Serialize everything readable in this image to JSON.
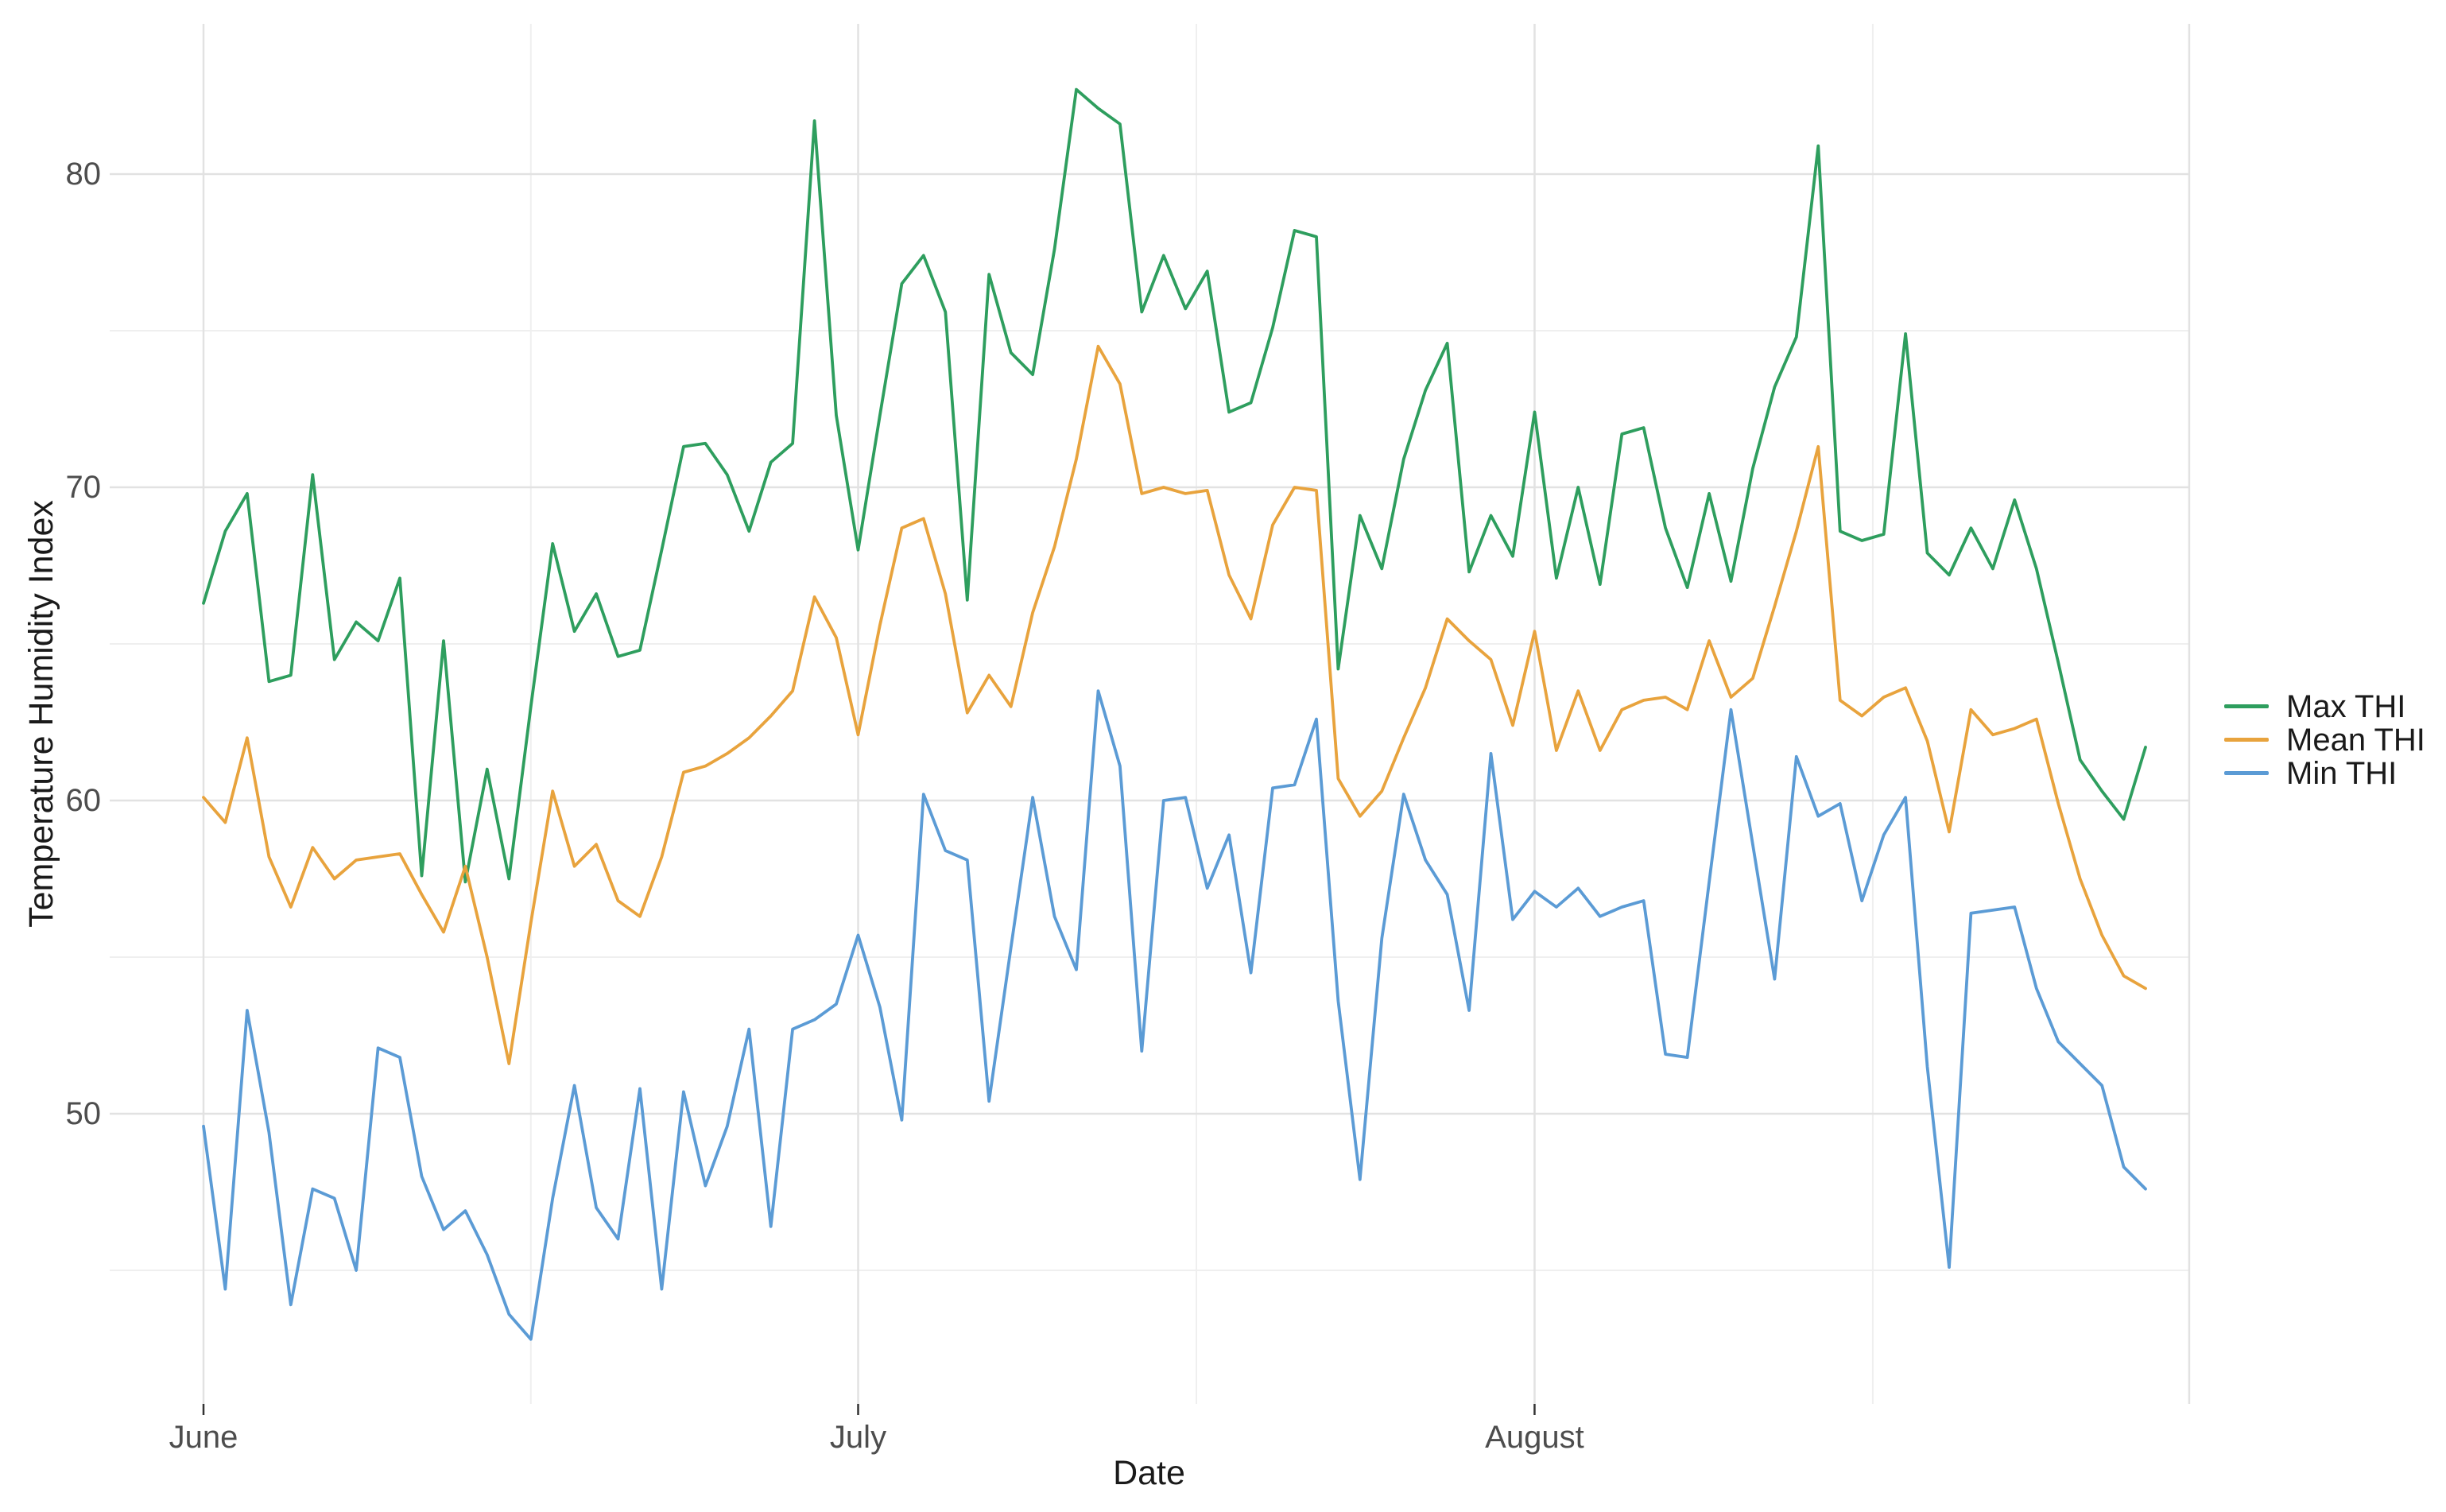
{
  "axes": {
    "x_title": "Date",
    "y_title": "Temperature Humidity Index"
  },
  "chart_data": {
    "type": "line",
    "title": "",
    "xlabel": "Date",
    "ylabel": "Temperature Humidity Index",
    "grid": true,
    "legend_position": "right",
    "ylim": [
      40.7,
      84.8
    ],
    "y_ticks": [
      80,
      70,
      60,
      50
    ],
    "y_minor_ticks": [
      75,
      65,
      55,
      45
    ],
    "x_ticks": [
      {
        "day": 0,
        "label": "June"
      },
      {
        "day": 30,
        "label": "July"
      },
      {
        "day": 61,
        "label": "August"
      },
      {
        "day": 91,
        "label": ""
      }
    ],
    "x_minor_days": [
      15,
      45.5,
      76.5
    ],
    "dates": [
      "Jun 1",
      "Jun 2",
      "Jun 3",
      "Jun 4",
      "Jun 5",
      "Jun 6",
      "Jun 7",
      "Jun 8",
      "Jun 9",
      "Jun 10",
      "Jun 11",
      "Jun 12",
      "Jun 13",
      "Jun 14",
      "Jun 15",
      "Jun 16",
      "Jun 17",
      "Jun 18",
      "Jun 19",
      "Jun 20",
      "Jun 21",
      "Jun 22",
      "Jun 23",
      "Jun 24",
      "Jun 25",
      "Jun 26",
      "Jun 27",
      "Jun 28",
      "Jun 29",
      "Jun 30",
      "Jul 1",
      "Jul 2",
      "Jul 3",
      "Jul 4",
      "Jul 5",
      "Jul 6",
      "Jul 7",
      "Jul 8",
      "Jul 9",
      "Jul 10",
      "Jul 11",
      "Jul 12",
      "Jul 13",
      "Jul 14",
      "Jul 15",
      "Jul 16",
      "Jul 17",
      "Jul 18",
      "Jul 19",
      "Jul 20",
      "Jul 21",
      "Jul 22",
      "Jul 23",
      "Jul 24",
      "Jul 25",
      "Jul 26",
      "Jul 27",
      "Jul 28",
      "Jul 29",
      "Jul 30",
      "Jul 31",
      "Aug 1",
      "Aug 2",
      "Aug 3",
      "Aug 4",
      "Aug 5",
      "Aug 6",
      "Aug 7",
      "Aug 8",
      "Aug 9",
      "Aug 10",
      "Aug 11",
      "Aug 12",
      "Aug 13",
      "Aug 14",
      "Aug 15",
      "Aug 16",
      "Aug 17",
      "Aug 18",
      "Aug 19",
      "Aug 20",
      "Aug 21",
      "Aug 22",
      "Aug 23",
      "Aug 24",
      "Aug 25",
      "Aug 26",
      "Aug 27",
      "Aug 28",
      "Aug 29"
    ],
    "series": [
      {
        "name": "Max THI",
        "color": "#2e9e5e",
        "values": [
          66.3,
          68.6,
          69.8,
          63.8,
          64.0,
          70.4,
          64.5,
          65.7,
          65.1,
          67.1,
          57.6,
          65.1,
          57.4,
          61.0,
          57.5,
          63.0,
          68.2,
          65.4,
          66.6,
          64.6,
          64.8,
          68.0,
          71.3,
          71.4,
          70.4,
          68.6,
          70.8,
          71.4,
          81.7,
          72.3,
          68.0,
          72.3,
          76.5,
          77.4,
          75.6,
          66.4,
          76.8,
          74.3,
          73.6,
          77.6,
          82.7,
          82.1,
          81.6,
          75.6,
          77.4,
          75.7,
          76.9,
          72.4,
          72.7,
          75.1,
          78.2,
          78.0,
          64.2,
          69.1,
          67.4,
          70.9,
          73.1,
          74.6,
          67.3,
          69.1,
          67.8,
          72.4,
          67.1,
          70.0,
          66.9,
          71.7,
          71.9,
          68.7,
          66.8,
          69.8,
          67.0,
          70.6,
          73.2,
          74.8,
          80.9,
          68.6,
          68.3,
          68.5,
          74.9,
          67.9,
          67.2,
          68.7,
          67.4,
          69.6,
          67.4,
          64.4,
          61.3,
          60.3,
          59.4,
          61.7
        ]
      },
      {
        "name": "Mean THI",
        "color": "#e8a33d",
        "values": [
          60.1,
          59.3,
          62.0,
          58.2,
          56.6,
          58.5,
          57.5,
          58.1,
          58.2,
          58.3,
          57.0,
          55.8,
          57.9,
          55.0,
          51.6,
          56.1,
          60.3,
          57.9,
          58.6,
          56.8,
          56.3,
          58.2,
          60.9,
          61.1,
          61.5,
          62.0,
          62.7,
          63.5,
          66.5,
          65.2,
          62.1,
          65.6,
          68.7,
          69.0,
          66.6,
          62.8,
          64.0,
          63.0,
          66.0,
          68.1,
          70.9,
          74.5,
          73.3,
          69.8,
          70.0,
          69.8,
          69.9,
          67.2,
          65.8,
          68.8,
          70.0,
          69.9,
          60.7,
          59.5,
          60.3,
          62.0,
          63.6,
          65.8,
          65.1,
          64.5,
          62.4,
          65.4,
          61.6,
          63.5,
          61.6,
          62.9,
          63.2,
          63.3,
          62.9,
          65.1,
          63.3,
          63.9,
          66.2,
          68.6,
          71.3,
          63.2,
          62.7,
          63.3,
          63.6,
          61.9,
          59.0,
          62.9,
          62.1,
          62.3,
          62.6,
          59.9,
          57.5,
          55.7,
          54.4,
          54.0
        ]
      },
      {
        "name": "Min THI",
        "color": "#5b9bd5",
        "values": [
          49.6,
          44.4,
          53.3,
          49.4,
          43.9,
          47.6,
          47.3,
          45.0,
          52.1,
          51.8,
          48.0,
          46.3,
          46.9,
          45.5,
          43.6,
          42.8,
          47.3,
          50.9,
          47.0,
          46.0,
          50.8,
          44.4,
          50.7,
          47.7,
          49.6,
          52.7,
          46.4,
          52.7,
          53.0,
          53.5,
          55.7,
          53.4,
          49.8,
          60.2,
          58.4,
          58.1,
          50.4,
          55.3,
          60.1,
          56.3,
          54.6,
          63.5,
          61.1,
          52.0,
          60.0,
          60.1,
          57.2,
          58.9,
          54.5,
          60.4,
          60.5,
          62.6,
          53.6,
          47.9,
          55.6,
          60.2,
          58.1,
          57.0,
          53.3,
          61.5,
          56.2,
          57.1,
          56.6,
          57.2,
          56.3,
          56.6,
          56.8,
          51.9,
          51.8,
          57.4,
          62.9,
          58.6,
          54.3,
          61.4,
          59.5,
          59.9,
          56.8,
          58.9,
          60.1,
          51.5,
          45.1,
          56.4,
          56.5,
          56.6,
          54.0,
          52.3,
          51.6,
          50.9,
          48.3,
          47.6
        ]
      }
    ],
    "style": {
      "major_grid_color": "#e2e2e2",
      "minor_grid_color": "#efefef",
      "tick_mark_color": "#333333",
      "tick_label_color": "#4d4d4d"
    }
  }
}
